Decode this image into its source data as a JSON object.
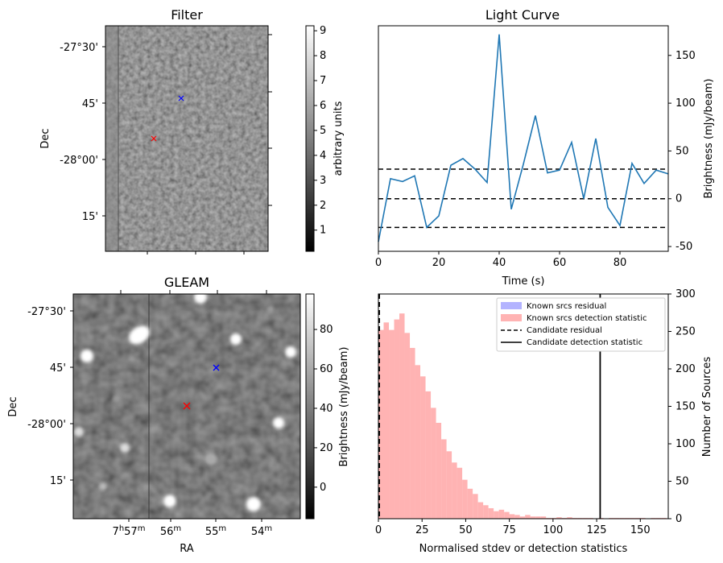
{
  "filter_panel": {
    "title": "Filter",
    "ylabel": "Dec",
    "dec_ticks": [
      "-27°30'",
      "45'",
      "-28°00'",
      "15'"
    ],
    "colorbar": {
      "label": "arbitrary units",
      "ticks": [
        "1",
        "2",
        "3",
        "4",
        "5",
        "6",
        "7",
        "8",
        "9"
      ]
    },
    "markers": [
      {
        "name": "blue-cross",
        "color": "#0000ff"
      },
      {
        "name": "red-cross",
        "color": "#ff0000"
      }
    ]
  },
  "gleam_panel": {
    "title": "GLEAM",
    "ylabel": "Dec",
    "xlabel": "RA",
    "dec_ticks": [
      "-27°30'",
      "45'",
      "-28°00'",
      "15'"
    ],
    "ra_ticks": [
      {
        "main": "7",
        "sup1": "h",
        "mid": "57",
        "sup2": "m"
      },
      {
        "main": "56",
        "sup2": "m"
      },
      {
        "main": "55",
        "sup2": "m"
      },
      {
        "main": "54",
        "sup2": "m"
      }
    ],
    "colorbar": {
      "label": "Brightness (mJy/beam)",
      "ticks": [
        "0",
        "20",
        "40",
        "60",
        "80"
      ]
    }
  },
  "chart_data": [
    {
      "type": "line",
      "title": "Light Curve",
      "xlabel": "Time (s)",
      "ylabel": "Brightness (mJy/beam)",
      "xlim": [
        0,
        96
      ],
      "ylim": [
        -55,
        181
      ],
      "xticks": [
        0,
        20,
        40,
        60,
        80
      ],
      "yticks": [
        -50,
        0,
        50,
        100,
        150
      ],
      "series": [
        {
          "color": "#1f77b4",
          "x": [
            0,
            4,
            8,
            12,
            16,
            20,
            24,
            28,
            32,
            36,
            40,
            44,
            48,
            52,
            56,
            60,
            64,
            68,
            72,
            76,
            80,
            84,
            88,
            92,
            96
          ],
          "y": [
            -45,
            21,
            18,
            24,
            -30,
            -18,
            35,
            42,
            31,
            17,
            172,
            -11,
            36,
            87,
            27,
            30,
            59,
            0,
            63,
            -9,
            -28,
            37,
            16,
            30,
            26
          ]
        }
      ],
      "hlines": [
        {
          "y": 31,
          "style": "dashed",
          "color": "#000000"
        },
        {
          "y": 0,
          "style": "dashed",
          "color": "#000000"
        },
        {
          "y": -30,
          "style": "dashed",
          "color": "#000000"
        }
      ]
    },
    {
      "type": "bar",
      "title": "",
      "xlabel": "Normalised stdev or detection statistics",
      "ylabel": "Number of Sources",
      "xlim": [
        0,
        166
      ],
      "ylim": [
        0,
        300
      ],
      "xticks": [
        0,
        25,
        50,
        75,
        100,
        125,
        150
      ],
      "yticks": [
        0,
        50,
        100,
        150,
        200,
        250,
        300
      ],
      "bin_width": 3,
      "legend_position": "top-right",
      "series": [
        {
          "name": "Known srcs residual",
          "color": "#b3b3ff",
          "values": []
        },
        {
          "name": "Known srcs detection statistic",
          "color": "#ffb3b3",
          "bin_start": 0,
          "values": [
            252,
            262,
            252,
            266,
            274,
            248,
            228,
            205,
            190,
            170,
            148,
            128,
            106,
            90,
            75,
            68,
            52,
            40,
            33,
            22,
            18,
            14,
            10,
            12,
            9,
            6,
            5,
            3,
            5,
            3,
            3,
            3,
            1,
            1,
            2,
            1,
            2,
            1,
            1,
            1,
            1,
            0,
            1,
            0,
            1,
            1,
            1,
            1,
            1,
            1,
            1,
            0,
            1,
            1,
            1
          ]
        }
      ],
      "vlines": [
        {
          "name": "Candidate residual",
          "x": 0.5,
          "style": "dashed",
          "color": "#000000"
        },
        {
          "name": "Candidate detection statistic",
          "x": 127,
          "style": "solid",
          "color": "#000000"
        }
      ]
    }
  ]
}
